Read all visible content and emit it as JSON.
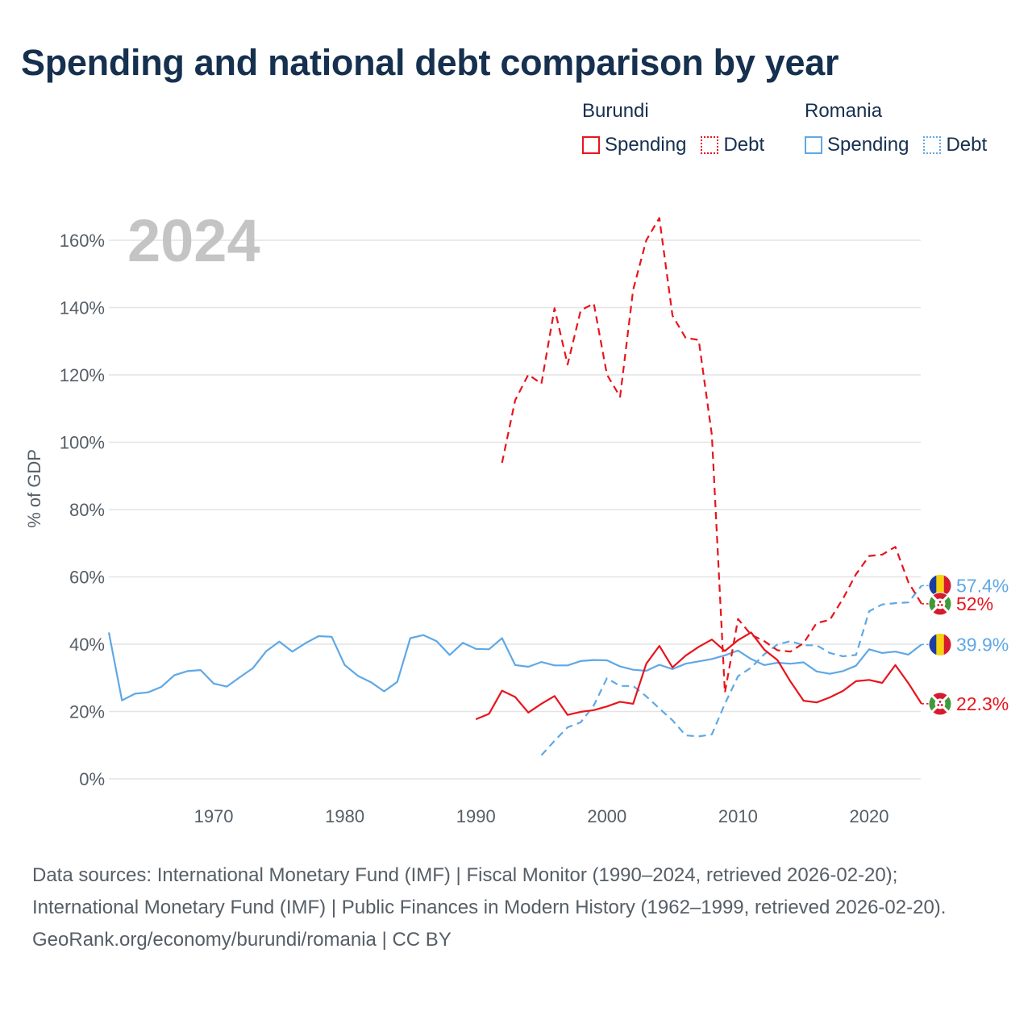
{
  "page": {
    "title": "Spending and national debt comparison by year",
    "year_watermark": "2024",
    "legend": [
      {
        "country": "Burundi",
        "color": "#e8141c",
        "items": [
          {
            "label": "Spending",
            "style": "solid"
          },
          {
            "label": "Debt",
            "style": "dotted"
          }
        ]
      },
      {
        "country": "Romania",
        "color": "#5fa8e6",
        "items": [
          {
            "label": "Spending",
            "style": "solid"
          },
          {
            "label": "Debt",
            "style": "dotted"
          }
        ]
      }
    ],
    "end_labels": [
      {
        "text": "57.4%",
        "color": "#5fa8e6",
        "flag": "romania-flag-icon",
        "value": 57.4
      },
      {
        "text": "52%",
        "color": "#e8141c",
        "flag": "burundi-flag-icon",
        "value": 52
      },
      {
        "text": "39.9%",
        "color": "#5fa8e6",
        "flag": "romania-flag-icon",
        "value": 39.9
      },
      {
        "text": "22.3%",
        "color": "#e8141c",
        "flag": "burundi-flag-icon",
        "value": 22.3
      }
    ],
    "footer": {
      "sources": "Data sources: International Monetary Fund (IMF) | Fiscal Monitor (1990–2024, retrieved 2026-02-20); International Monetary Fund (IMF) | Public Finances in Modern History (1962–1999, retrieved 2026-02-20).",
      "credit": "GeoRank.org/economy/burundi/romania | CC BY"
    }
  },
  "chart_data": {
    "type": "line",
    "title": "Spending and national debt comparison by year",
    "xlabel": "",
    "ylabel": "% of GDP",
    "xlim": [
      1962,
      2024
    ],
    "ylim": [
      0,
      170
    ],
    "xticks": [
      1970,
      1980,
      1990,
      2000,
      2010,
      2020
    ],
    "yticks": [
      0,
      20,
      40,
      60,
      80,
      100,
      120,
      140,
      160
    ],
    "ytick_labels": [
      "0%",
      "20%",
      "40%",
      "60%",
      "80%",
      "100%",
      "120%",
      "140%",
      "160%"
    ],
    "grid": true,
    "series": [
      {
        "name": "Romania Spending",
        "country": "Romania",
        "metric": "Spending",
        "color": "#5fa8e6",
        "style": "solid",
        "x": [
          1962,
          1963,
          1964,
          1965,
          1966,
          1967,
          1968,
          1969,
          1970,
          1971,
          1972,
          1973,
          1974,
          1975,
          1976,
          1977,
          1978,
          1979,
          1980,
          1981,
          1982,
          1983,
          1984,
          1985,
          1986,
          1987,
          1988,
          1989,
          1990,
          1991,
          1992,
          1993,
          1994,
          1995,
          1996,
          1997,
          1998,
          1999,
          2000,
          2001,
          2002,
          2003,
          2004,
          2005,
          2006,
          2007,
          2008,
          2009,
          2010,
          2011,
          2012,
          2013,
          2014,
          2015,
          2016,
          2017,
          2018,
          2019,
          2020,
          2021,
          2022,
          2023,
          2024
        ],
        "values": [
          43.5,
          23.3,
          25.3,
          25.7,
          27.3,
          30.8,
          32.0,
          32.3,
          28.3,
          27.4,
          30.2,
          32.9,
          37.9,
          40.8,
          37.8,
          40.3,
          42.4,
          42.2,
          33.8,
          30.6,
          28.7,
          26.0,
          28.8,
          41.8,
          42.7,
          40.9,
          36.8,
          40.4,
          38.6,
          38.5,
          41.8,
          33.8,
          33.3,
          34.7,
          33.7,
          33.7,
          35.0,
          35.3,
          35.2,
          33.4,
          32.4,
          32.1,
          33.9,
          32.6,
          34.2,
          34.9,
          35.6,
          36.7,
          38.1,
          35.6,
          33.8,
          34.5,
          34.2,
          34.6,
          31.9,
          31.2,
          32.0,
          33.6,
          38.5,
          37.4,
          37.8,
          36.9,
          39.9
        ]
      },
      {
        "name": "Romania Debt",
        "country": "Romania",
        "metric": "Debt",
        "color": "#5fa8e6",
        "style": "dashed",
        "x": [
          1995,
          1996,
          1997,
          1998,
          1999,
          2000,
          2001,
          2002,
          2003,
          2004,
          2005,
          2006,
          2007,
          2008,
          2009,
          2010,
          2011,
          2012,
          2013,
          2014,
          2015,
          2016,
          2017,
          2018,
          2019,
          2020,
          2021,
          2022,
          2023,
          2024
        ],
        "values": [
          7.0,
          11.3,
          15.3,
          16.8,
          21.8,
          29.9,
          27.6,
          27.6,
          24.5,
          20.9,
          17.4,
          12.9,
          12.6,
          13.2,
          22.3,
          30.5,
          33.0,
          37.0,
          39.9,
          40.9,
          39.7,
          39.7,
          37.4,
          36.4,
          36.8,
          49.8,
          51.8,
          52.2,
          52.4,
          57.4
        ]
      },
      {
        "name": "Burundi Spending",
        "country": "Burundi",
        "metric": "Spending",
        "color": "#e8141c",
        "style": "solid",
        "x": [
          1990,
          1991,
          1992,
          1993,
          1994,
          1995,
          1996,
          1997,
          1998,
          1999,
          2000,
          2001,
          2002,
          2003,
          2004,
          2005,
          2006,
          2007,
          2008,
          2009,
          2010,
          2011,
          2012,
          2013,
          2014,
          2015,
          2016,
          2017,
          2018,
          2019,
          2020,
          2021,
          2022,
          2023,
          2024
        ],
        "values": [
          17.7,
          19.3,
          26.2,
          24.3,
          19.7,
          22.3,
          24.6,
          19.0,
          19.9,
          20.4,
          21.5,
          22.9,
          22.3,
          34.2,
          39.5,
          33.1,
          36.6,
          39.2,
          41.4,
          38.0,
          41.2,
          43.5,
          38.4,
          35.3,
          28.9,
          23.2,
          22.7,
          24.2,
          26.1,
          29.0,
          29.4,
          28.5,
          33.8,
          28.4,
          22.3
        ]
      },
      {
        "name": "Burundi Debt",
        "country": "Burundi",
        "metric": "Debt",
        "color": "#e8141c",
        "style": "dashed",
        "x": [
          1992,
          1993,
          1994,
          1995,
          1996,
          1997,
          1998,
          1999,
          2000,
          2001,
          2002,
          2003,
          2004,
          2005,
          2006,
          2007,
          2008,
          2009,
          2010,
          2011,
          2012,
          2013,
          2014,
          2015,
          2016,
          2017,
          2018,
          2019,
          2020,
          2021,
          2022,
          2023,
          2024
        ],
        "values": [
          93.9,
          112.5,
          120.1,
          117.4,
          139.8,
          123.1,
          139.2,
          141.2,
          120.1,
          113.5,
          145.3,
          160.0,
          166.6,
          137.6,
          131.0,
          130.4,
          102.2,
          25.6,
          47.5,
          42.8,
          40.9,
          38.2,
          37.8,
          40.3,
          46.3,
          47.2,
          53.5,
          60.8,
          66.2,
          66.6,
          68.9,
          58.4,
          52.0
        ]
      }
    ]
  }
}
